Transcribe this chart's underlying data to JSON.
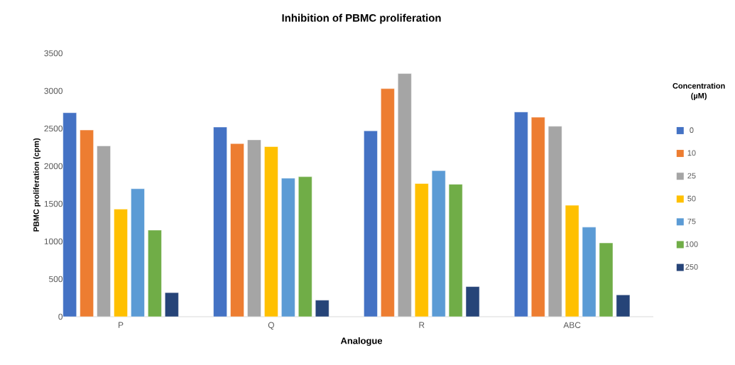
{
  "chart_data": {
    "type": "bar",
    "title": "Inhibition of PBMC proliferation",
    "xlabel": "Analogue",
    "ylabel": "PBMC proliferation (cpm)",
    "legend_title": "Concentration (µM)",
    "categories": [
      "P",
      "Q",
      "R",
      "ABC"
    ],
    "series": [
      {
        "name": "0",
        "color": "#4472c4",
        "values": [
          2710,
          2520,
          2470,
          2720
        ]
      },
      {
        "name": "10",
        "color": "#ed7d31",
        "values": [
          2480,
          2300,
          3030,
          2650
        ]
      },
      {
        "name": "25",
        "color": "#a5a5a5",
        "values": [
          2270,
          2350,
          3230,
          2530
        ]
      },
      {
        "name": "50",
        "color": "#ffc000",
        "values": [
          1430,
          2260,
          1770,
          1480
        ]
      },
      {
        "name": "75",
        "color": "#5b9bd5",
        "values": [
          1700,
          1840,
          1940,
          1190
        ]
      },
      {
        "name": "100",
        "color": "#70ad47",
        "values": [
          1150,
          1860,
          1760,
          980
        ]
      },
      {
        "name": "250",
        "color": "#264478",
        "values": [
          320,
          220,
          400,
          290
        ]
      }
    ],
    "ylim": [
      0,
      3500
    ],
    "yticks": [
      0,
      500,
      1000,
      1500,
      2000,
      2500,
      3000,
      3500
    ],
    "grid": false,
    "legend": "right"
  }
}
